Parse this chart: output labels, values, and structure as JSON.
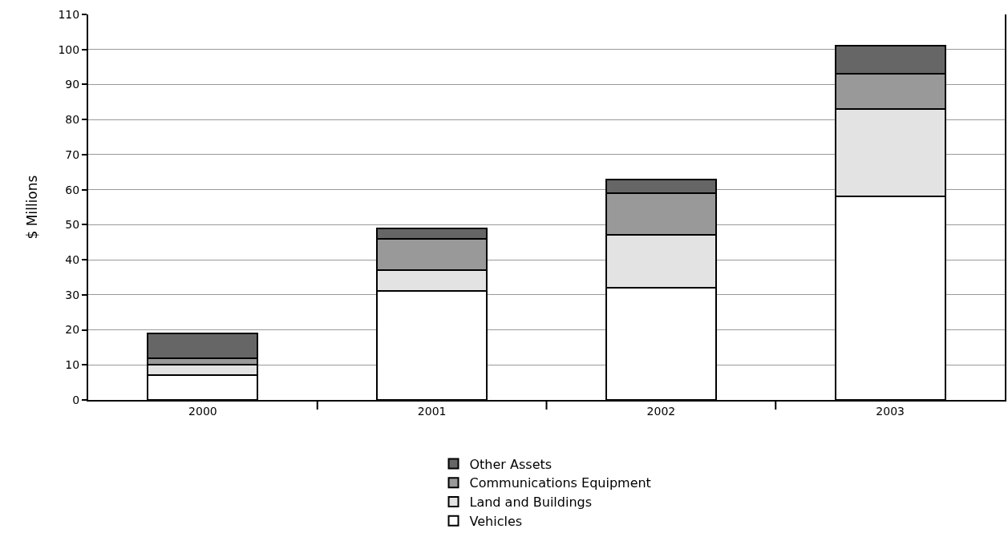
{
  "chart_data": {
    "type": "bar",
    "stacked": true,
    "ylabel": "$ Millions",
    "categories": [
      "2000",
      "2001",
      "2002",
      "2003"
    ],
    "series": [
      {
        "name": "Vehicles",
        "color": "#ffffff",
        "values": [
          7,
          31,
          32,
          58
        ]
      },
      {
        "name": "Land and Buildings",
        "color": "#e3e3e3",
        "values": [
          3,
          6,
          15,
          25
        ]
      },
      {
        "name": "Communications Equipment",
        "color": "#999999",
        "values": [
          2,
          9,
          12,
          10
        ]
      },
      {
        "name": "Other Assets",
        "color": "#666666",
        "values": [
          7,
          3,
          4,
          8
        ]
      }
    ],
    "ylim": [
      0,
      110
    ],
    "yticks": [
      0,
      10,
      20,
      30,
      40,
      50,
      60,
      70,
      80,
      90,
      100,
      110
    ],
    "grid": "y",
    "legend": "bottom"
  }
}
